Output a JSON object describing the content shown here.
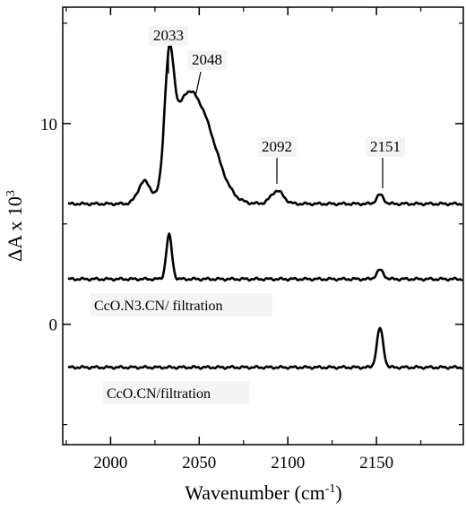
{
  "chart_data": {
    "type": "line",
    "title": "",
    "xlabel": "Wavenumber (cm",
    "xlabel_sup": "-1",
    "xlabel_close": ")",
    "ylabel": "ΔA x 10",
    "ylabel_sup": "3",
    "xlim": [
      1973,
      2199
    ],
    "ylim": [
      -6.0,
      15.8
    ],
    "x_ticks": [
      2000,
      2050,
      2100,
      2150
    ],
    "y_ticks": [
      0,
      10
    ],
    "y_minor_ticks": [
      -5,
      5,
      15
    ],
    "line_color": "#000000",
    "series": [
      {
        "baseline": 6.0,
        "peaks": [
          {
            "center": 2019,
            "height": 1.1,
            "width": 3.5
          },
          {
            "center": 2033,
            "height": 5.7,
            "width": 2.6
          },
          {
            "center": 2040,
            "height": 2.4,
            "width": 6.0
          },
          {
            "center": 2050,
            "height": 4.5,
            "width": 9.5
          },
          {
            "center": 2094,
            "height": 0.65,
            "width": 3.5
          },
          {
            "center": 2152,
            "height": 0.45,
            "width": 2.0
          }
        ]
      },
      {
        "name": "CcO.N3.CN/ filtration",
        "baseline": 2.25,
        "peaks": [
          {
            "center": 2033,
            "height": 2.2,
            "width": 1.6
          },
          {
            "center": 2152,
            "height": 0.45,
            "width": 2.0
          }
        ]
      },
      {
        "name": "CcO.CN/filtration",
        "baseline": -2.15,
        "peaks": [
          {
            "center": 2152,
            "height": 1.95,
            "width": 1.8
          }
        ]
      }
    ],
    "annotations": [
      {
        "text": "2033",
        "x": 2033
      },
      {
        "text": "2048",
        "x": 2048
      },
      {
        "text": "2092",
        "x": 2094
      },
      {
        "text": "2151",
        "x": 2152
      }
    ]
  }
}
